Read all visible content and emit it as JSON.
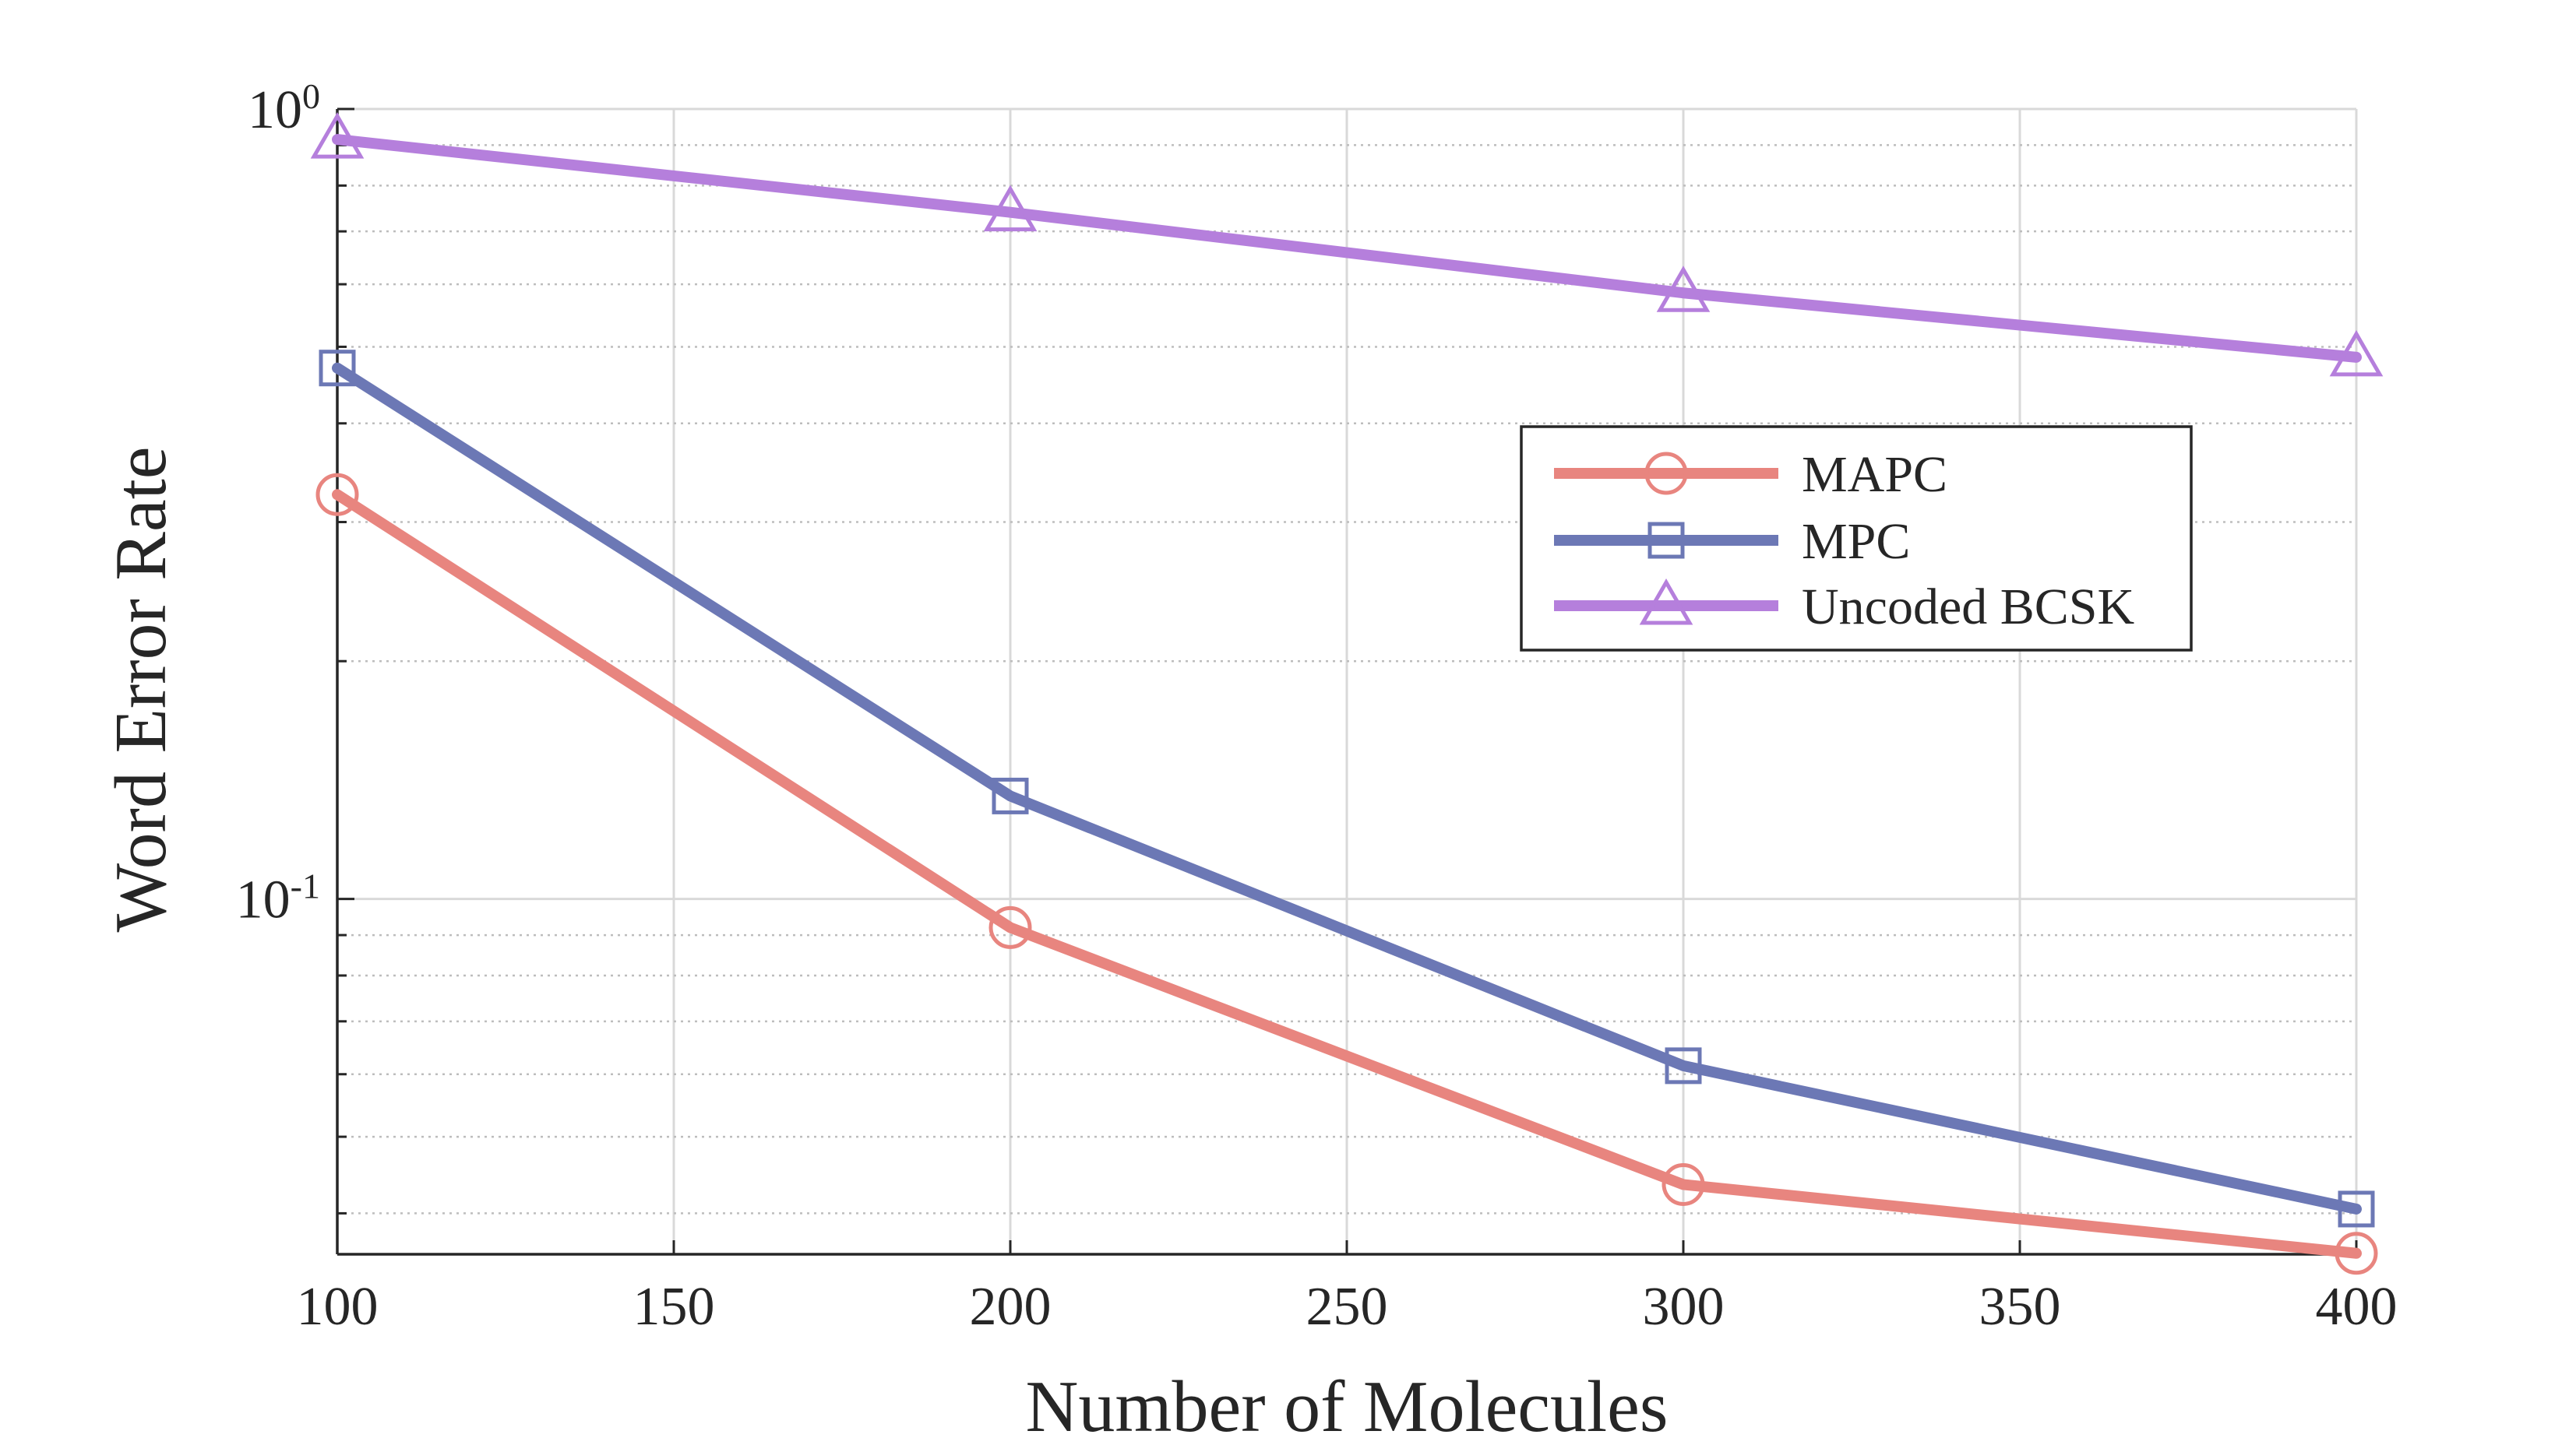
{
  "chart_data": {
    "type": "line",
    "title": "",
    "xlabel": "Number of Molecules",
    "ylabel": "Word Error Rate",
    "xlim": [
      100,
      400
    ],
    "ylim": [
      0.0355,
      1.0
    ],
    "yscale": "log",
    "grid": true,
    "x_ticks": [
      100,
      150,
      200,
      250,
      300,
      350,
      400
    ],
    "x_tick_labels": [
      "100",
      "150",
      "200",
      "250",
      "300",
      "350",
      "400"
    ],
    "y_tick_labels": [
      {
        "value": 1.0,
        "base": "10",
        "exp": "0"
      },
      {
        "value": 0.1,
        "base": "10",
        "exp": "-1"
      }
    ],
    "legend_position": "center-right",
    "x": [
      100,
      200,
      300,
      400
    ],
    "series": [
      {
        "name": "MAPC",
        "color": "#E8857F",
        "marker": "circle",
        "values": [
          0.325,
          0.092,
          0.0435,
          0.0356
        ]
      },
      {
        "name": "MPC",
        "color": "#6C78B5",
        "marker": "square",
        "values": [
          0.47,
          0.135,
          0.0615,
          0.0405
        ]
      },
      {
        "name": "Uncoded BCSK",
        "color": "#B57FDC",
        "marker": "triangle",
        "values": [
          0.915,
          0.74,
          0.585,
          0.485
        ]
      }
    ]
  }
}
